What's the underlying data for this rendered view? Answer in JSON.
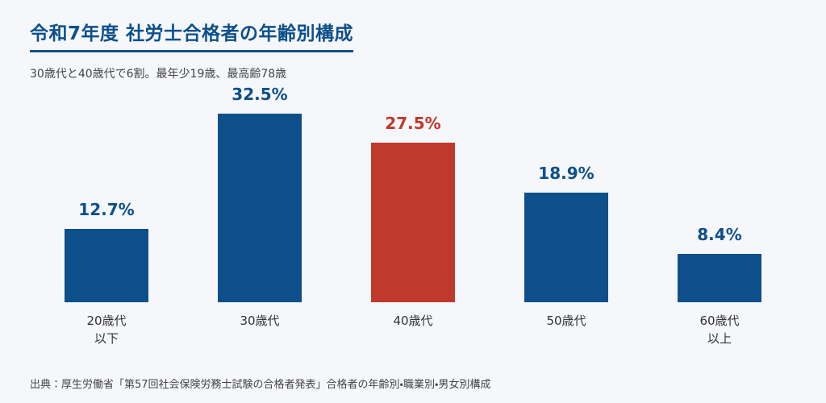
{
  "chart_data": {
    "type": "bar",
    "title": "令和7年度 社労士合格者の年齢別構成",
    "subtitle": "30歳代と40歳代で6割。最年少19歳、最高齢78歳",
    "categories": [
      "20歳代\n以下",
      "30歳代",
      "40歳代",
      "50歳代",
      "60歳代\n以上"
    ],
    "values": [
      12.7,
      32.5,
      27.5,
      18.9,
      8.4
    ],
    "value_labels": [
      "12.7%",
      "32.5%",
      "27.5%",
      "18.9%",
      "8.4%"
    ],
    "colors": [
      "#0d4f8b",
      "#0d4f8b",
      "#c0392b",
      "#0d4f8b",
      "#0d4f8b"
    ],
    "source": "出典：厚生労働省「第57回社会保険労務士試験の合格者発表」合格者の年齢別・職業別・男女別構成"
  }
}
